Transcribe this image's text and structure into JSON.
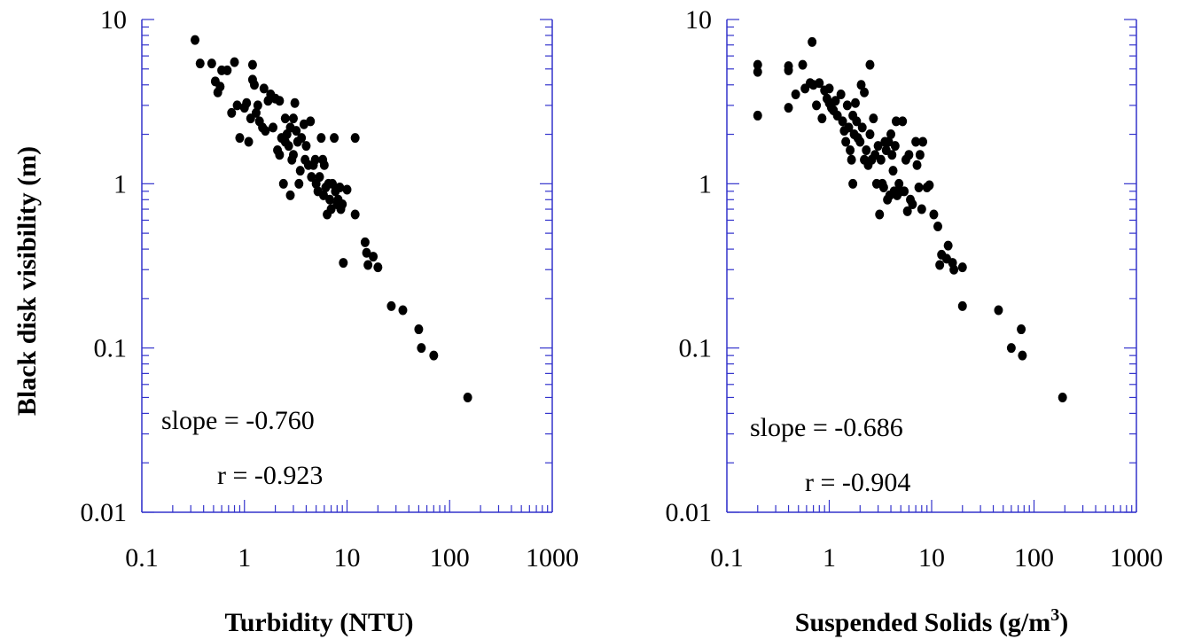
{
  "chart_data": [
    {
      "type": "scatter",
      "xlabel": "Turbidity (NTU)",
      "ylabel": "Black disk visibility (m)",
      "xscale": "log",
      "yscale": "log",
      "xlim": [
        0.1,
        1000
      ],
      "ylim": [
        0.01,
        10
      ],
      "xticks": [
        "0.1",
        "1",
        "10",
        "100",
        "1000"
      ],
      "yticks": [
        "0.01",
        "0.1",
        "1",
        "10"
      ],
      "annotations": [
        "slope = -0.760",
        "r = -0.923"
      ],
      "point_color": "#000000",
      "axis_color": "#3333cc",
      "points": [
        [
          0.33,
          7.5
        ],
        [
          0.37,
          5.4
        ],
        [
          0.48,
          5.4
        ],
        [
          0.52,
          4.2
        ],
        [
          0.55,
          3.6
        ],
        [
          0.58,
          3.9
        ],
        [
          0.6,
          4.9
        ],
        [
          0.68,
          4.9
        ],
        [
          0.75,
          2.7
        ],
        [
          0.8,
          5.5
        ],
        [
          0.85,
          3.0
        ],
        [
          0.9,
          1.9
        ],
        [
          1.0,
          2.9
        ],
        [
          1.05,
          3.1
        ],
        [
          1.1,
          1.8
        ],
        [
          1.15,
          2.5
        ],
        [
          1.2,
          4.3
        ],
        [
          1.2,
          5.3
        ],
        [
          1.25,
          4.0
        ],
        [
          1.3,
          2.7
        ],
        [
          1.35,
          3.0
        ],
        [
          1.4,
          2.4
        ],
        [
          1.5,
          2.2
        ],
        [
          1.55,
          3.8
        ],
        [
          1.6,
          2.1
        ],
        [
          1.7,
          3.2
        ],
        [
          1.8,
          3.5
        ],
        [
          1.9,
          2.2
        ],
        [
          2.0,
          3.3
        ],
        [
          2.1,
          1.6
        ],
        [
          2.2,
          3.2
        ],
        [
          2.2,
          1.5
        ],
        [
          2.3,
          1.9
        ],
        [
          2.4,
          1.0
        ],
        [
          2.5,
          2.5
        ],
        [
          2.5,
          1.8
        ],
        [
          2.6,
          2.0
        ],
        [
          2.7,
          1.7
        ],
        [
          2.8,
          2.2
        ],
        [
          2.8,
          0.85
        ],
        [
          2.9,
          1.4
        ],
        [
          3.0,
          2.5
        ],
        [
          3.0,
          1.5
        ],
        [
          3.1,
          3.1
        ],
        [
          3.2,
          2.1
        ],
        [
          3.3,
          1.8
        ],
        [
          3.4,
          1.0
        ],
        [
          3.5,
          1.2
        ],
        [
          3.6,
          1.9
        ],
        [
          3.8,
          2.3
        ],
        [
          3.9,
          1.4
        ],
        [
          4.0,
          1.7
        ],
        [
          4.2,
          1.3
        ],
        [
          4.4,
          2.4
        ],
        [
          4.5,
          1.1
        ],
        [
          4.7,
          1.3
        ],
        [
          4.9,
          1.4
        ],
        [
          5.0,
          1.0
        ],
        [
          5.2,
          0.9
        ],
        [
          5.4,
          1.1
        ],
        [
          5.6,
          1.9
        ],
        [
          5.8,
          1.4
        ],
        [
          5.9,
          0.85
        ],
        [
          6.0,
          1.3
        ],
        [
          6.2,
          0.95
        ],
        [
          6.4,
          0.65
        ],
        [
          6.6,
          1.0
        ],
        [
          6.8,
          0.8
        ],
        [
          7.0,
          0.7
        ],
        [
          7.2,
          1.0
        ],
        [
          7.5,
          1.9
        ],
        [
          7.7,
          0.9
        ],
        [
          8.0,
          0.75
        ],
        [
          8.2,
          0.8
        ],
        [
          8.5,
          0.95
        ],
        [
          8.7,
          0.7
        ],
        [
          9.0,
          0.75
        ],
        [
          9.2,
          0.33
        ],
        [
          10.0,
          0.92
        ],
        [
          12.0,
          1.9
        ],
        [
          12.0,
          0.65
        ],
        [
          15.0,
          0.44
        ],
        [
          15.5,
          0.38
        ],
        [
          16.0,
          0.32
        ],
        [
          18.0,
          0.36
        ],
        [
          20.0,
          0.31
        ],
        [
          27.0,
          0.18
        ],
        [
          35.0,
          0.17
        ],
        [
          50.0,
          0.13
        ],
        [
          53.0,
          0.1
        ],
        [
          70.0,
          0.09
        ],
        [
          150.0,
          0.05
        ]
      ]
    },
    {
      "type": "scatter",
      "xlabel_main": "Suspended Solids (g/m",
      "xlabel_sup": "3",
      "xlabel_end": ")",
      "xscale": "log",
      "yscale": "log",
      "xlim": [
        0.1,
        1000
      ],
      "ylim": [
        0.01,
        10
      ],
      "xticks": [
        "0.1",
        "1",
        "10",
        "100",
        "1000"
      ],
      "yticks": [
        "0.01",
        "0.1",
        "1",
        "10"
      ],
      "annotations": [
        "slope = -0.686",
        "r = -0.904"
      ],
      "point_color": "#000000",
      "axis_color": "#3333cc",
      "points": [
        [
          0.2,
          5.3
        ],
        [
          0.2,
          4.8
        ],
        [
          0.2,
          2.6
        ],
        [
          0.4,
          5.2
        ],
        [
          0.4,
          4.9
        ],
        [
          0.4,
          2.9
        ],
        [
          0.47,
          3.5
        ],
        [
          0.55,
          5.3
        ],
        [
          0.58,
          3.8
        ],
        [
          0.65,
          4.1
        ],
        [
          0.68,
          7.3
        ],
        [
          0.7,
          4.0
        ],
        [
          0.75,
          3.0
        ],
        [
          0.8,
          4.1
        ],
        [
          0.85,
          2.5
        ],
        [
          0.9,
          3.7
        ],
        [
          0.95,
          3.3
        ],
        [
          1.0,
          3.8
        ],
        [
          1.0,
          3.1
        ],
        [
          1.05,
          2.9
        ],
        [
          1.1,
          2.8
        ],
        [
          1.15,
          3.2
        ],
        [
          1.2,
          2.6
        ],
        [
          1.3,
          3.5
        ],
        [
          1.35,
          2.4
        ],
        [
          1.4,
          2.1
        ],
        [
          1.45,
          1.8
        ],
        [
          1.5,
          3.0
        ],
        [
          1.55,
          2.2
        ],
        [
          1.6,
          1.6
        ],
        [
          1.65,
          1.4
        ],
        [
          1.7,
          2.6
        ],
        [
          1.7,
          1.0
        ],
        [
          1.75,
          2.0
        ],
        [
          1.8,
          3.1
        ],
        [
          1.85,
          2.4
        ],
        [
          1.9,
          1.9
        ],
        [
          2.0,
          1.8
        ],
        [
          2.05,
          4.0
        ],
        [
          2.1,
          2.2
        ],
        [
          2.2,
          3.6
        ],
        [
          2.2,
          1.4
        ],
        [
          2.3,
          1.6
        ],
        [
          2.4,
          1.3
        ],
        [
          2.5,
          2.0
        ],
        [
          2.5,
          5.3
        ],
        [
          2.6,
          1.4
        ],
        [
          2.7,
          2.5
        ],
        [
          2.8,
          1.5
        ],
        [
          2.9,
          1.0
        ],
        [
          3.0,
          1.7
        ],
        [
          3.1,
          0.65
        ],
        [
          3.2,
          1.4
        ],
        [
          3.3,
          1.0
        ],
        [
          3.4,
          0.95
        ],
        [
          3.5,
          1.8
        ],
        [
          3.6,
          1.6
        ],
        [
          3.7,
          0.8
        ],
        [
          3.8,
          1.8
        ],
        [
          3.9,
          0.85
        ],
        [
          4.0,
          2.0
        ],
        [
          4.1,
          1.5
        ],
        [
          4.2,
          1.2
        ],
        [
          4.3,
          0.9
        ],
        [
          4.4,
          1.7
        ],
        [
          4.5,
          2.4
        ],
        [
          4.6,
          0.85
        ],
        [
          4.8,
          1.0
        ],
        [
          5.0,
          0.9
        ],
        [
          5.2,
          2.4
        ],
        [
          5.4,
          0.9
        ],
        [
          5.6,
          1.4
        ],
        [
          5.8,
          0.68
        ],
        [
          6.0,
          1.5
        ],
        [
          6.2,
          0.8
        ],
        [
          6.5,
          0.75
        ],
        [
          7.0,
          1.8
        ],
        [
          7.2,
          1.3
        ],
        [
          7.5,
          0.95
        ],
        [
          7.7,
          1.5
        ],
        [
          8.0,
          0.7
        ],
        [
          8.2,
          1.8
        ],
        [
          9.0,
          0.95
        ],
        [
          9.5,
          0.98
        ],
        [
          10.5,
          0.65
        ],
        [
          11.5,
          0.55
        ],
        [
          12.0,
          0.32
        ],
        [
          12.5,
          0.37
        ],
        [
          14.0,
          0.35
        ],
        [
          14.5,
          0.42
        ],
        [
          16.0,
          0.33
        ],
        [
          16.5,
          0.3
        ],
        [
          20.0,
          0.31
        ],
        [
          20.0,
          0.18
        ],
        [
          45.0,
          0.17
        ],
        [
          60.0,
          0.1
        ],
        [
          75.0,
          0.13
        ],
        [
          77.0,
          0.09
        ],
        [
          190.0,
          0.05
        ]
      ]
    }
  ]
}
